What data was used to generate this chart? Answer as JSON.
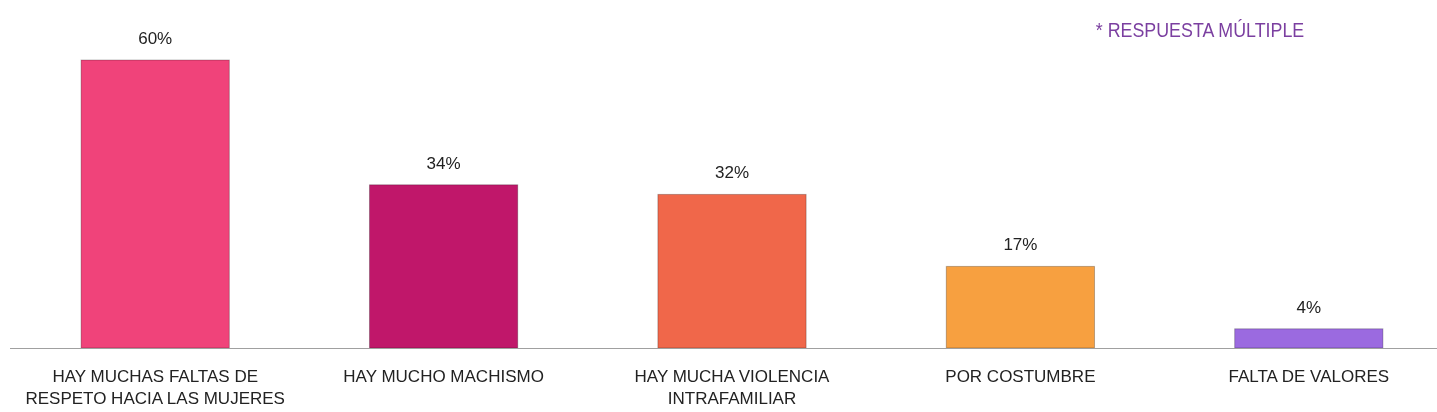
{
  "chart_data": {
    "type": "bar",
    "categories": [
      "HAY MUCHAS FALTAS DE RESPETO HACIA LAS MUJERES",
      "HAY MUCHO MACHISMO",
      "HAY MUCHA VIOLENCIA INTRAFAMILIAR",
      "POR COSTUMBRE",
      "FALTA DE VALORES"
    ],
    "values": [
      60,
      34,
      32,
      17,
      4
    ],
    "colors": [
      "#f0437a",
      "#c0176a",
      "#f0674a",
      "#f7a040",
      "#9b6ae0"
    ],
    "value_labels": [
      "60%",
      "34%",
      "32%",
      "17%",
      "4%"
    ],
    "annotations": [
      "* RESPUESTA MÚLTIPLE"
    ]
  }
}
